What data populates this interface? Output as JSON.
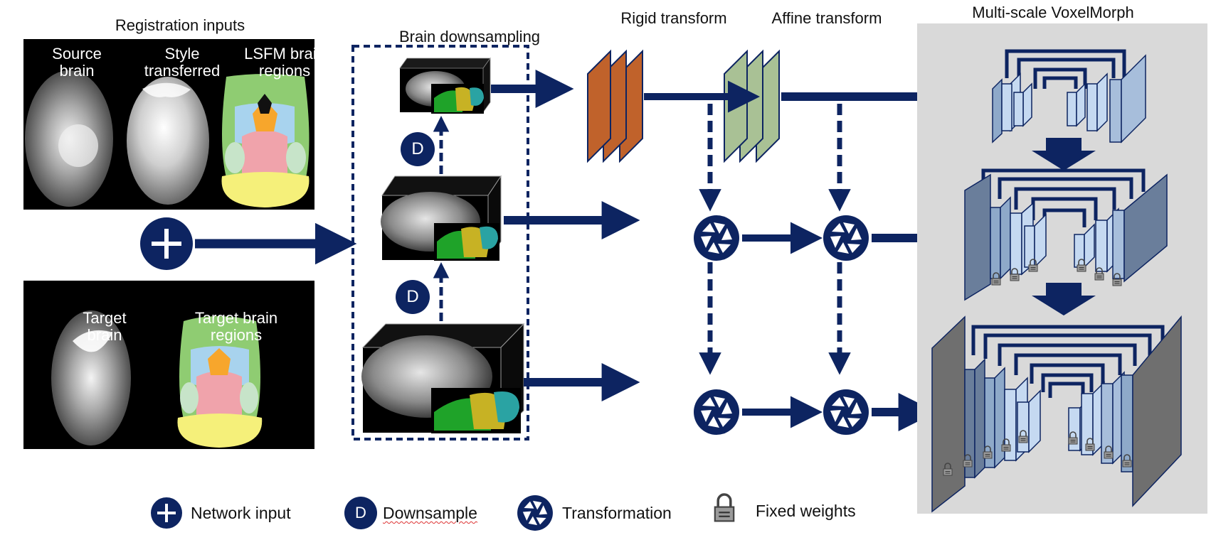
{
  "labels": {
    "registration_inputs": "Registration inputs",
    "source_brain": "Source brain",
    "style_transferred": "Style transferred",
    "lsfm_regions": "LSFM brain regions",
    "target_brain": "Target brain",
    "target_regions": "Target brain regions",
    "brain_downsampling": "Brain downsampling",
    "rigid_transform": "Rigid transform",
    "affine_transform": "Affine transform",
    "multiscale_voxelmorph": "Multi-scale VoxelMorph",
    "downsample_badge": "D"
  },
  "legend": {
    "network_input": "Network input",
    "downsample": "Downsample",
    "downsample_badge": "D",
    "transformation": "Transformation",
    "fixed_weights": "Fixed weights"
  },
  "colors": {
    "navy": "#0d2461",
    "rigid_orange": "#c0622b",
    "affine_green": "#a9c195",
    "voxel_light": "#c5d9f1",
    "voxel_mid": "#8ea9c9",
    "voxel_dark": "#6a7e9b",
    "voxel_darkest": "#6f6f6f",
    "voxelmorph_bg": "#d9d9d9",
    "region_green": "#8fcc72",
    "region_blue": "#a8d3ee",
    "region_pink": "#f0a3ab",
    "region_yellow": "#f5f07a",
    "region_orange": "#f7a62c",
    "region_mint": "#c7e4c9"
  }
}
